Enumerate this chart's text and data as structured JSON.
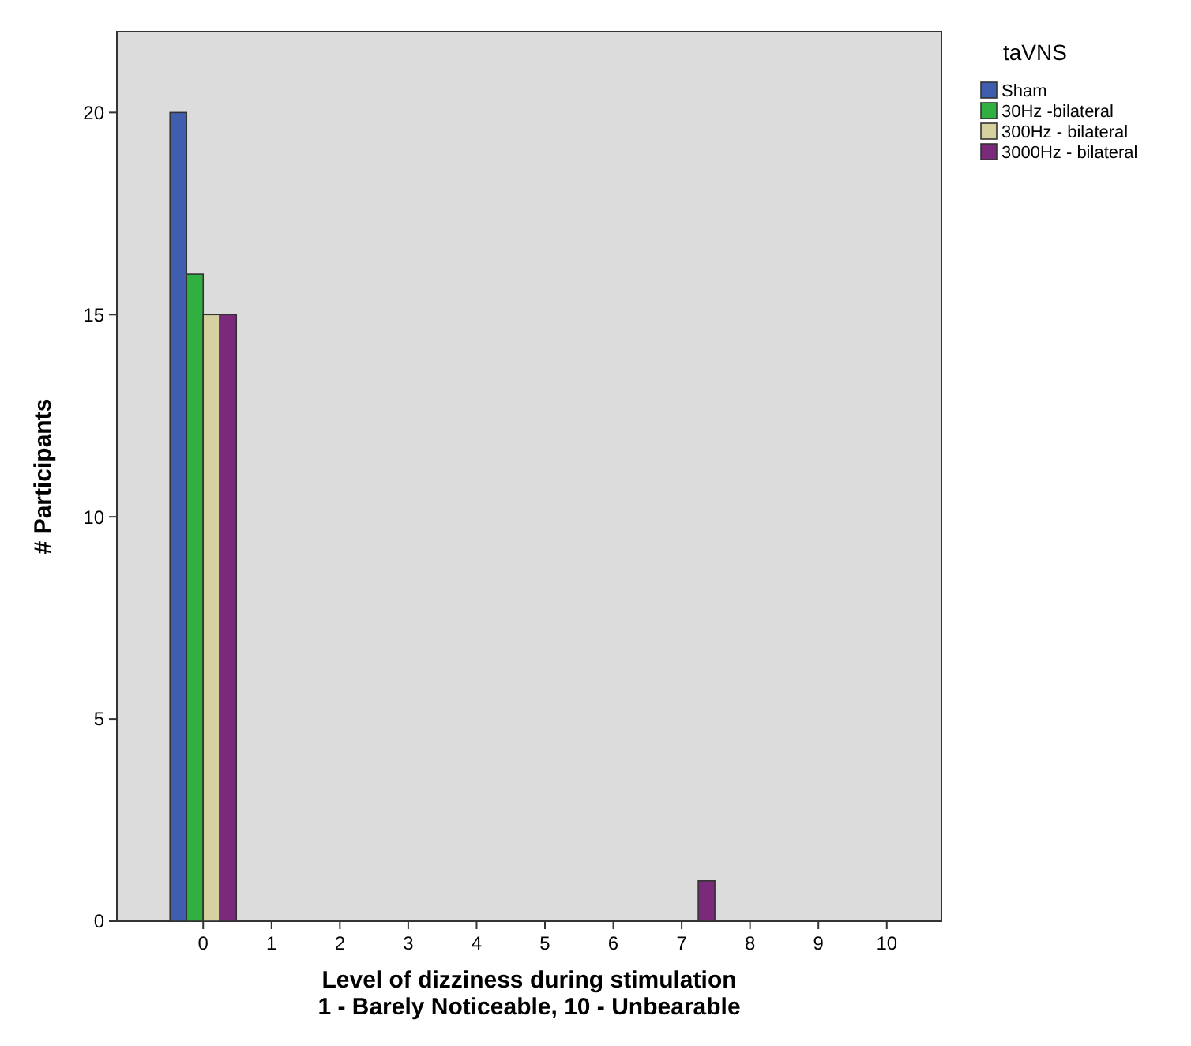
{
  "chart_data": {
    "type": "bar",
    "xlabel": "Level of dizziness during stimulation\n1 - Barely Noticeable, 10 - Unbearable",
    "ylabel": "# Participants",
    "legend_title": "taVNS",
    "categories": [
      "0",
      "1",
      "2",
      "3",
      "4",
      "5",
      "6",
      "7",
      "8",
      "9",
      "10"
    ],
    "series": [
      {
        "name": "Sham",
        "color": "#3f5fae",
        "values": [
          20,
          0,
          0,
          0,
          0,
          0,
          0,
          0,
          0,
          0,
          0
        ]
      },
      {
        "name": "30Hz -bilateral",
        "color": "#2fb040",
        "values": [
          16,
          0,
          0,
          0,
          0,
          0,
          0,
          0,
          0,
          0,
          0
        ]
      },
      {
        "name": "300Hz - bilateral",
        "color": "#d6d2a0",
        "values": [
          15,
          0,
          0,
          0,
          0,
          0,
          0,
          0,
          0,
          0,
          0
        ]
      },
      {
        "name": "3000Hz - bilateral",
        "color": "#7b2a7b",
        "values": [
          15,
          0,
          0,
          0,
          0,
          0,
          0,
          1,
          0,
          0,
          0
        ]
      }
    ],
    "ylim": [
      0,
      22
    ],
    "yticks": [
      0,
      5,
      10,
      15,
      20
    ],
    "grid": false,
    "legend": "top right"
  }
}
